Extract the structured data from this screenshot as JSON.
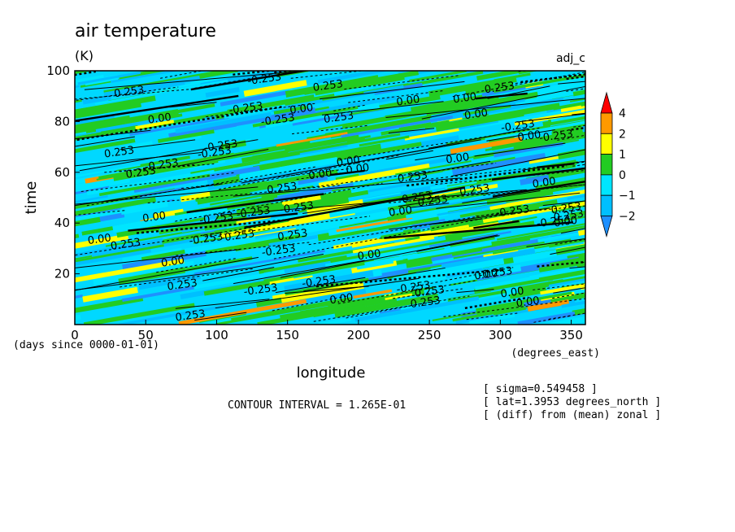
{
  "chart_data": {
    "type": "heatmap",
    "title": "air temperature",
    "units": "(K)",
    "variable_tag": "adj_c",
    "xlabel": "longitude",
    "ylabel": "time",
    "x_units_label": "(degrees_east)",
    "y_units_label": "(days since 0000-01-01)",
    "xlim": [
      0,
      360
    ],
    "ylim": [
      0,
      100
    ],
    "x_ticks": [
      0,
      50,
      100,
      150,
      200,
      250,
      300,
      350
    ],
    "y_ticks": [
      20,
      40,
      60,
      80,
      100
    ],
    "colorbar": {
      "levels": [
        -2,
        -1,
        0,
        1,
        2,
        4
      ],
      "colors": [
        "#1e90ff",
        "#00bfff",
        "#00e5ff",
        "#22cc22",
        "#ffff00",
        "#ff9900",
        "#ff0000"
      ],
      "tick_labels": [
        "4",
        "2",
        "1",
        "0",
        "−1",
        "−2"
      ]
    },
    "contour_labels_sample": [
      "0.00",
      "0.253",
      "-0.253"
    ],
    "contour_interval_text": "CONTOUR INTERVAL = 1.265E-01",
    "annotations": [
      "[ sigma=0.549458 ]",
      "[ lat=1.3953 degrees_north ]",
      "[ (diff) from (mean) zonal ]"
    ]
  }
}
